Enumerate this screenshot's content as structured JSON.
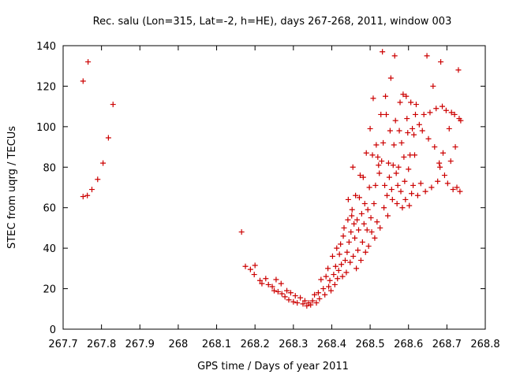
{
  "chart_data": {
    "type": "scatter",
    "title": "Rec. salu (Lon=315, Lat=-2, h=HE), days 267-268, 2011, window 003",
    "xlabel": "GPS time / Days of year 2011",
    "ylabel": "STEC from uqrg / TECUs",
    "xlim": [
      267.7,
      268.8
    ],
    "ylim": [
      0,
      140
    ],
    "x_ticks": [
      267.7,
      267.8,
      267.9,
      268.0,
      268.1,
      268.2,
      268.3,
      268.4,
      268.5,
      268.6,
      268.7,
      268.8
    ],
    "x_tick_labels": [
      "267.7",
      "267.8",
      "267.9",
      "268",
      "268.1",
      "268.2",
      "268.3",
      "268.4",
      "268.5",
      "268.6",
      "268.7",
      "268.8"
    ],
    "y_ticks": [
      0,
      20,
      40,
      60,
      80,
      100,
      120,
      140
    ],
    "y_tick_labels": [
      "0",
      "20",
      "40",
      "60",
      "80",
      "100",
      "120",
      "140"
    ],
    "marker": "+",
    "marker_color": "#cc0000",
    "grid": false,
    "points": [
      [
        267.752,
        65.5
      ],
      [
        267.752,
        122.5
      ],
      [
        267.763,
        66
      ],
      [
        267.765,
        132
      ],
      [
        267.775,
        69
      ],
      [
        267.79,
        74
      ],
      [
        267.804,
        82
      ],
      [
        267.818,
        94.5
      ],
      [
        267.83,
        111
      ],
      [
        268.165,
        48
      ],
      [
        268.175,
        31
      ],
      [
        268.188,
        29.5
      ],
      [
        268.198,
        27
      ],
      [
        268.2,
        31.5
      ],
      [
        268.213,
        24
      ],
      [
        268.218,
        22.5
      ],
      [
        268.228,
        25
      ],
      [
        268.235,
        22
      ],
      [
        268.245,
        21
      ],
      [
        268.25,
        19
      ],
      [
        268.255,
        24.5
      ],
      [
        268.26,
        18.5
      ],
      [
        268.268,
        22.5
      ],
      [
        268.27,
        17.5
      ],
      [
        268.278,
        16
      ],
      [
        268.283,
        19
      ],
      [
        268.288,
        14.5
      ],
      [
        268.293,
        18
      ],
      [
        268.3,
        13.5
      ],
      [
        268.305,
        16.5
      ],
      [
        268.31,
        13
      ],
      [
        268.318,
        15.5
      ],
      [
        268.325,
        12.5
      ],
      [
        268.33,
        14
      ],
      [
        268.335,
        11.5
      ],
      [
        268.34,
        13
      ],
      [
        268.345,
        12
      ],
      [
        268.35,
        14
      ],
      [
        268.355,
        17
      ],
      [
        268.36,
        13
      ],
      [
        268.365,
        18
      ],
      [
        268.368,
        15
      ],
      [
        268.372,
        24.5
      ],
      [
        268.378,
        20
      ],
      [
        268.382,
        17
      ],
      [
        268.385,
        26
      ],
      [
        268.39,
        30
      ],
      [
        268.392,
        21
      ],
      [
        268.395,
        24
      ],
      [
        268.398,
        19
      ],
      [
        268.402,
        36
      ],
      [
        268.405,
        27
      ],
      [
        268.408,
        22
      ],
      [
        268.41,
        31
      ],
      [
        268.413,
        40
      ],
      [
        268.415,
        25
      ],
      [
        268.418,
        29
      ],
      [
        268.42,
        37
      ],
      [
        268.423,
        42
      ],
      [
        268.425,
        32
      ],
      [
        268.428,
        26
      ],
      [
        268.43,
        46
      ],
      [
        268.432,
        50
      ],
      [
        268.435,
        34
      ],
      [
        268.438,
        28
      ],
      [
        268.44,
        38
      ],
      [
        268.442,
        54
      ],
      [
        268.443,
        64
      ],
      [
        268.445,
        43
      ],
      [
        268.448,
        33
      ],
      [
        268.45,
        48
      ],
      [
        268.452,
        56
      ],
      [
        268.453,
        59
      ],
      [
        268.455,
        80
      ],
      [
        268.456,
        36
      ],
      [
        268.458,
        52
      ],
      [
        268.46,
        45
      ],
      [
        268.462,
        66
      ],
      [
        268.464,
        30
      ],
      [
        268.466,
        54
      ],
      [
        268.468,
        39
      ],
      [
        268.47,
        49
      ],
      [
        268.472,
        65
      ],
      [
        268.474,
        76
      ],
      [
        268.476,
        34
      ],
      [
        268.478,
        57
      ],
      [
        268.48,
        43
      ],
      [
        268.482,
        75
      ],
      [
        268.484,
        52
      ],
      [
        268.486,
        62
      ],
      [
        268.488,
        38
      ],
      [
        268.49,
        87
      ],
      [
        268.492,
        49
      ],
      [
        268.494,
        59
      ],
      [
        268.496,
        41
      ],
      [
        268.498,
        70
      ],
      [
        268.5,
        99
      ],
      [
        268.502,
        55
      ],
      [
        268.504,
        48
      ],
      [
        268.506,
        86
      ],
      [
        268.508,
        114
      ],
      [
        268.51,
        62
      ],
      [
        268.512,
        45
      ],
      [
        268.514,
        71
      ],
      [
        268.516,
        91
      ],
      [
        268.518,
        53
      ],
      [
        268.52,
        85
      ],
      [
        268.522,
        81
      ],
      [
        268.524,
        77
      ],
      [
        268.526,
        50
      ],
      [
        268.528,
        106
      ],
      [
        268.53,
        83
      ],
      [
        268.532,
        137
      ],
      [
        268.534,
        92
      ],
      [
        268.536,
        60
      ],
      [
        268.538,
        71
      ],
      [
        268.54,
        115
      ],
      [
        268.542,
        106
      ],
      [
        268.544,
        66
      ],
      [
        268.546,
        56
      ],
      [
        268.548,
        82
      ],
      [
        268.55,
        75
      ],
      [
        268.552,
        98
      ],
      [
        268.554,
        124
      ],
      [
        268.556,
        69
      ],
      [
        268.558,
        64
      ],
      [
        268.56,
        81
      ],
      [
        268.562,
        91
      ],
      [
        268.564,
        135
      ],
      [
        268.566,
        103
      ],
      [
        268.568,
        77
      ],
      [
        268.57,
        62
      ],
      [
        268.572,
        71
      ],
      [
        268.574,
        80
      ],
      [
        268.576,
        98
      ],
      [
        268.578,
        112
      ],
      [
        268.58,
        68
      ],
      [
        268.582,
        92
      ],
      [
        268.584,
        60
      ],
      [
        268.586,
        116
      ],
      [
        268.588,
        85
      ],
      [
        268.59,
        73
      ],
      [
        268.592,
        64
      ],
      [
        268.594,
        115
      ],
      [
        268.596,
        104
      ],
      [
        268.598,
        97
      ],
      [
        268.6,
        79
      ],
      [
        268.602,
        61
      ],
      [
        268.604,
        86
      ],
      [
        268.606,
        112
      ],
      [
        268.608,
        67
      ],
      [
        268.61,
        99
      ],
      [
        268.612,
        71
      ],
      [
        268.614,
        96
      ],
      [
        268.616,
        86
      ],
      [
        268.618,
        106
      ],
      [
        268.62,
        111
      ],
      [
        268.624,
        66
      ],
      [
        268.628,
        101
      ],
      [
        268.632,
        72
      ],
      [
        268.636,
        98
      ],
      [
        268.64,
        106
      ],
      [
        268.644,
        68
      ],
      [
        268.648,
        135
      ],
      [
        268.652,
        94
      ],
      [
        268.656,
        107
      ],
      [
        268.66,
        70
      ],
      [
        268.664,
        120
      ],
      [
        268.668,
        90
      ],
      [
        268.672,
        109
      ],
      [
        268.676,
        73
      ],
      [
        268.68,
        82
      ],
      [
        268.682,
        80
      ],
      [
        268.684,
        132
      ],
      [
        268.688,
        110
      ],
      [
        268.69,
        87
      ],
      [
        268.694,
        76
      ],
      [
        268.698,
        108
      ],
      [
        268.702,
        72
      ],
      [
        268.706,
        99
      ],
      [
        268.71,
        83
      ],
      [
        268.712,
        107
      ],
      [
        268.716,
        69
      ],
      [
        268.72,
        106
      ],
      [
        268.722,
        90
      ],
      [
        268.726,
        70
      ],
      [
        268.73,
        128
      ],
      [
        268.732,
        104
      ],
      [
        268.734,
        68
      ],
      [
        268.736,
        103
      ]
    ]
  }
}
